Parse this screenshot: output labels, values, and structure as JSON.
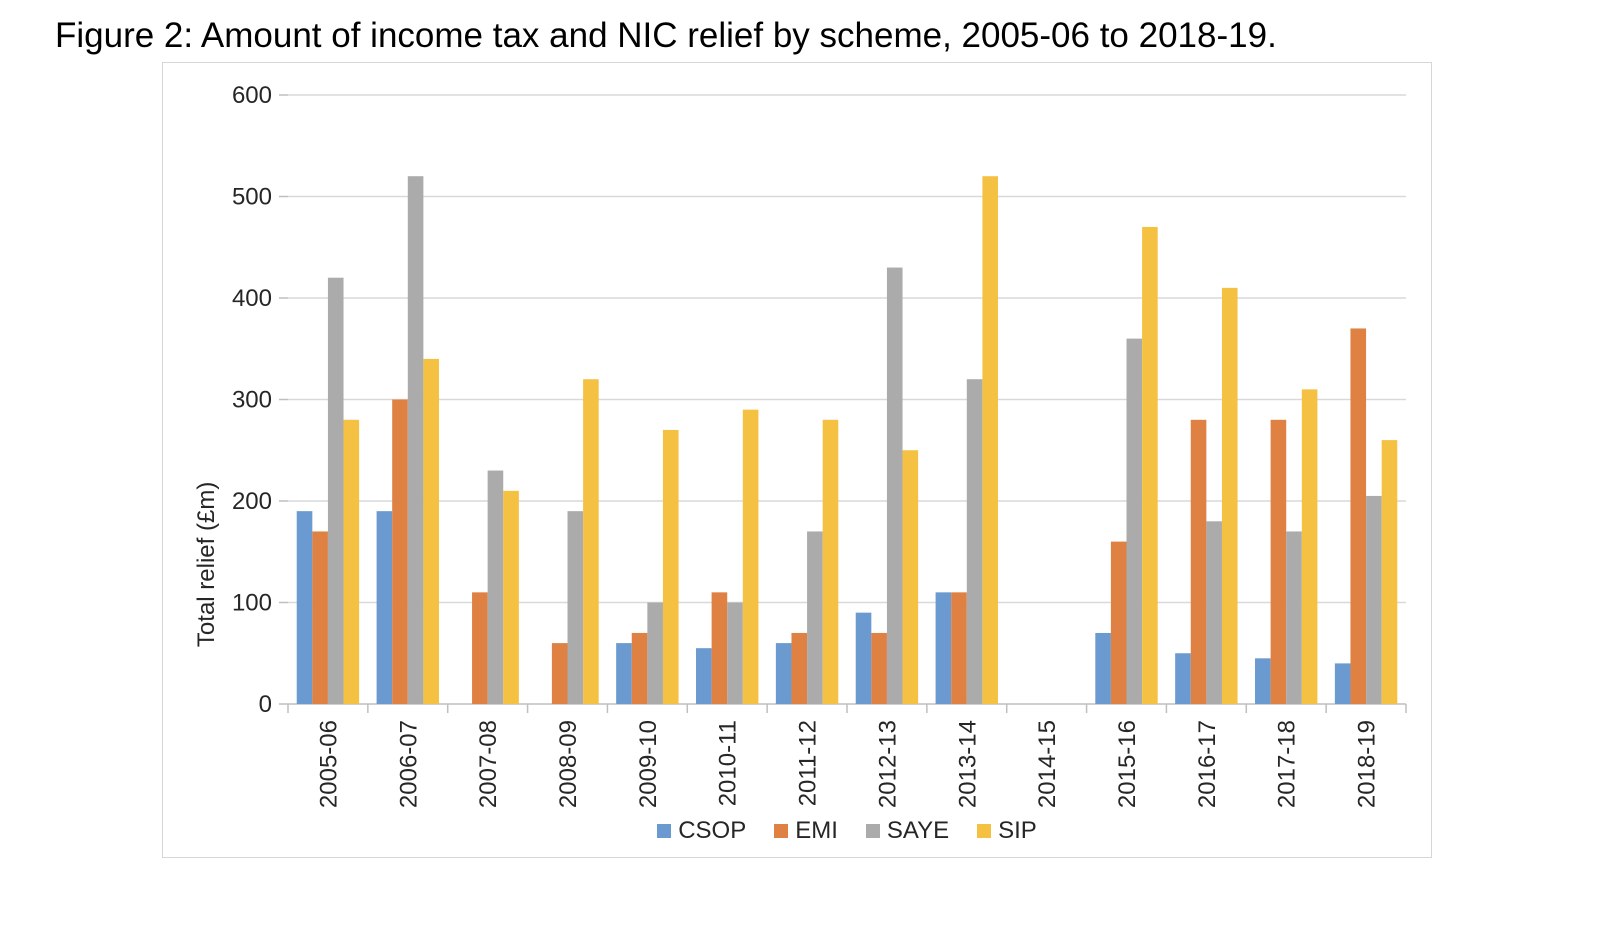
{
  "figure": {
    "title": "Figure 2: Amount of income tax and NIC relief by scheme, 2005-06 to 2018-19."
  },
  "style": {
    "grid_color": "#d9d9d9",
    "axis_color": "#bfbfbf",
    "text_color": "#262626",
    "frame_border_color": "#d6d6d6"
  },
  "chart_data": {
    "type": "bar",
    "title": "Figure 2: Amount of income tax and NIC relief by scheme, 2005-06 to 2018-19.",
    "xlabel": "",
    "ylabel": "Total relief (£m)",
    "ylim": [
      0,
      600
    ],
    "yticks": [
      0,
      100,
      200,
      300,
      400,
      500,
      600
    ],
    "grid": true,
    "legend_position": "bottom",
    "categories": [
      "2005-06",
      "2006-07",
      "2007-08",
      "2008-09",
      "2009-10",
      "2010-11",
      "2011-12",
      "2012-13",
      "2013-14",
      "2014-15",
      "2015-16",
      "2016-17",
      "2017-18",
      "2018-19"
    ],
    "series": [
      {
        "name": "CSOP",
        "color": "#6b9ad0",
        "values": [
          190,
          190,
          0,
          0,
          60,
          55,
          60,
          90,
          110,
          0,
          70,
          50,
          45,
          40
        ]
      },
      {
        "name": "EMI",
        "color": "#de8142",
        "values": [
          170,
          300,
          110,
          60,
          70,
          110,
          70,
          70,
          110,
          0,
          160,
          280,
          280,
          370
        ]
      },
      {
        "name": "SAYE",
        "color": "#ababab",
        "values": [
          420,
          520,
          230,
          190,
          100,
          100,
          170,
          430,
          320,
          0,
          360,
          180,
          170,
          205
        ]
      },
      {
        "name": "SIP",
        "color": "#f5c142",
        "values": [
          280,
          340,
          210,
          320,
          270,
          290,
          280,
          250,
          520,
          0,
          470,
          410,
          310,
          260
        ]
      }
    ]
  }
}
